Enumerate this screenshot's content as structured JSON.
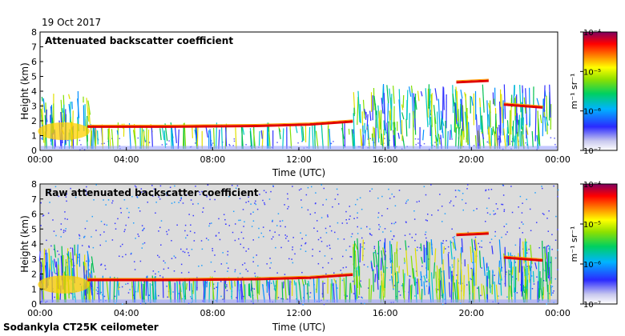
{
  "header": {
    "date": "19 Oct 2017"
  },
  "footer": {
    "instrument": "Sodankyla CT25K ceilometer"
  },
  "chart_data": [
    {
      "type": "heatmap",
      "title": "Attenuated backscatter coefficient",
      "xlabel": "Time (UTC)",
      "ylabel": "Height (km)",
      "x_ticks": [
        "00:00",
        "04:00",
        "08:00",
        "12:00",
        "16:00",
        "20:00",
        "00:00"
      ],
      "y_ticks": [
        "0",
        "1",
        "2",
        "3",
        "4",
        "5",
        "6",
        "7",
        "8"
      ],
      "ylim": [
        0,
        8
      ],
      "xlim_hours": [
        0,
        24
      ],
      "colorbar": {
        "ticks": [
          "10⁻⁷",
          "10⁻⁶",
          "10⁻⁵",
          "10⁻⁴"
        ],
        "label": "m⁻¹ sr⁻¹",
        "scale": "log"
      },
      "features": [
        {
          "kind": "cloud-base",
          "t": [
            2.2,
            6,
            10,
            12.5,
            14.5
          ],
          "h": [
            1.6,
            1.6,
            1.65,
            1.75,
            1.95
          ]
        },
        {
          "kind": "cloud-base",
          "t": [
            19.3,
            20.8
          ],
          "h": [
            4.6,
            4.7
          ]
        },
        {
          "kind": "cloud-base",
          "t": [
            21.5,
            23.3
          ],
          "h": [
            3.1,
            2.9
          ]
        }
      ]
    },
    {
      "type": "heatmap",
      "title": "Raw attenuated backscatter coefficient",
      "xlabel": "Time (UTC)",
      "ylabel": "Height (km)",
      "x_ticks": [
        "00:00",
        "04:00",
        "08:00",
        "12:00",
        "16:00",
        "20:00",
        "00:00"
      ],
      "y_ticks": [
        "0",
        "1",
        "2",
        "3",
        "4",
        "5",
        "6",
        "7",
        "8"
      ],
      "ylim": [
        0,
        8
      ],
      "xlim_hours": [
        0,
        24
      ],
      "colorbar": {
        "ticks": [
          "10⁻⁷",
          "10⁻⁶",
          "10⁻⁵",
          "10⁻⁴"
        ],
        "label": "m⁻¹ sr⁻¹",
        "scale": "log"
      },
      "features": [
        {
          "kind": "cloud-base",
          "t": [
            2.2,
            6,
            10,
            12.5,
            14.5
          ],
          "h": [
            1.6,
            1.6,
            1.65,
            1.75,
            1.95
          ]
        },
        {
          "kind": "cloud-base",
          "t": [
            19.3,
            20.8
          ],
          "h": [
            4.6,
            4.7
          ]
        },
        {
          "kind": "cloud-base",
          "t": [
            21.5,
            23.3
          ],
          "h": [
            3.1,
            2.9
          ]
        }
      ]
    }
  ]
}
